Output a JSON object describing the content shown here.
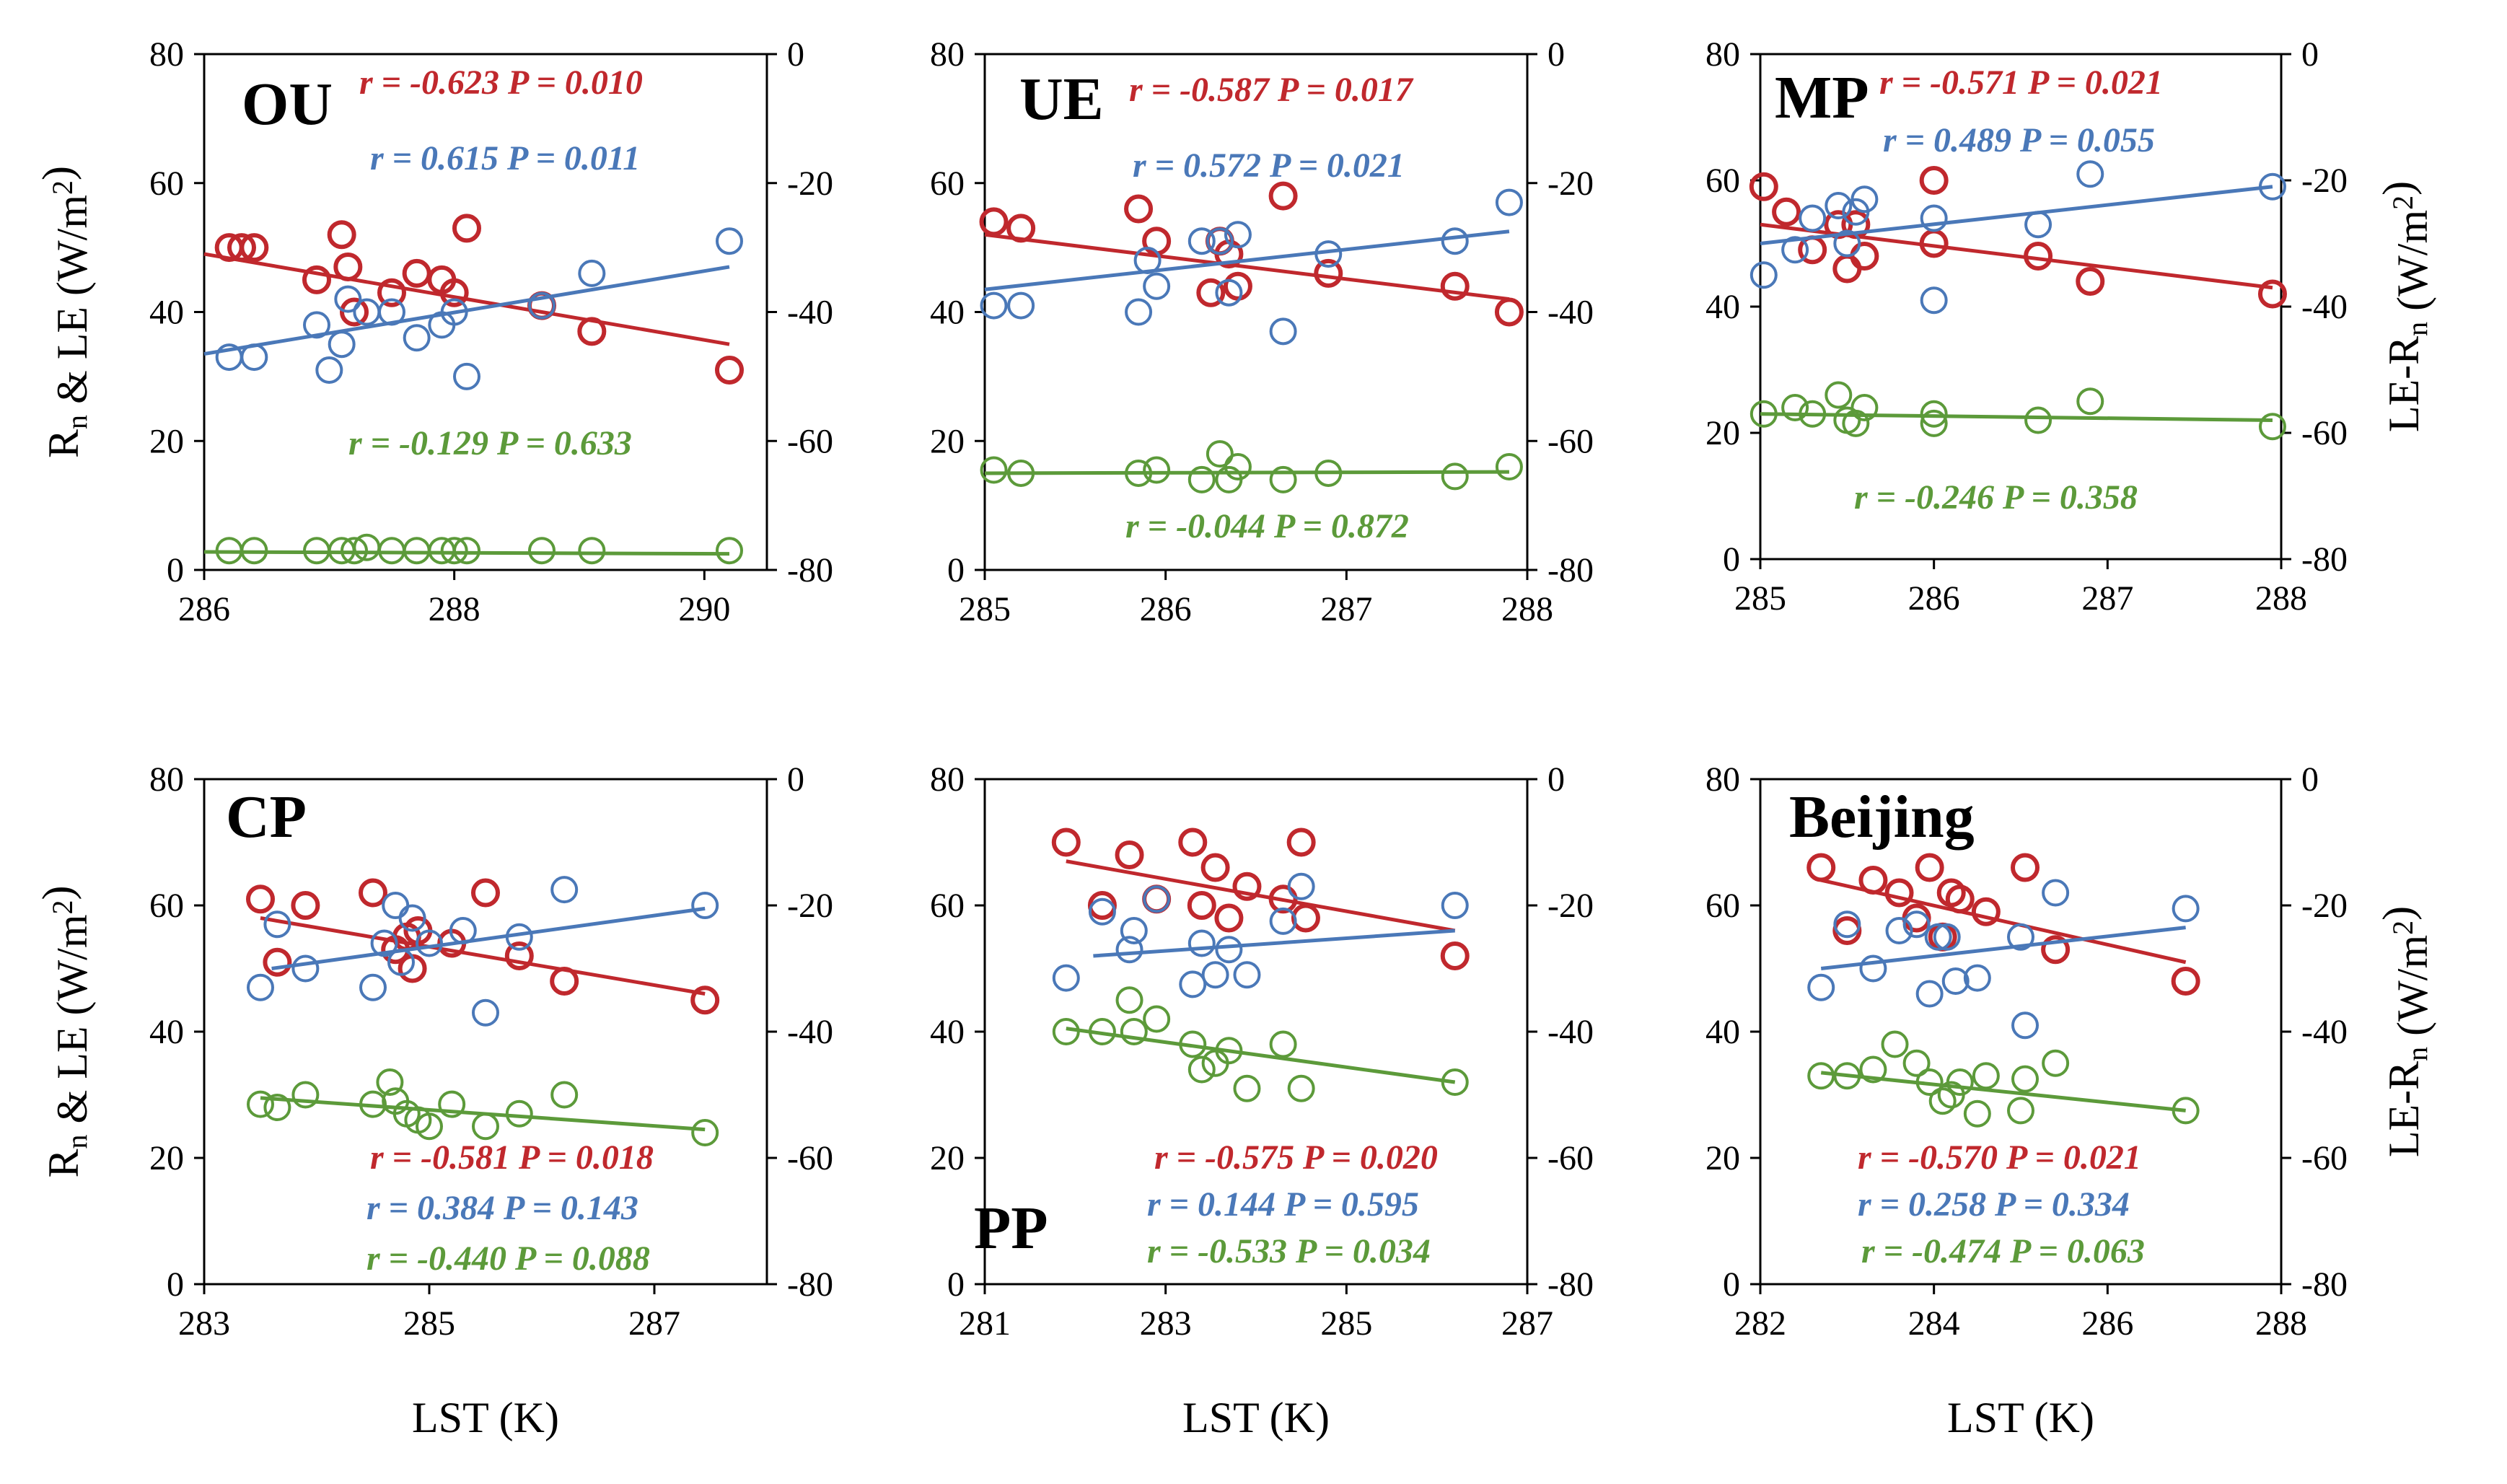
{
  "chart_data": [
    {
      "type": "scatter",
      "title": "OU",
      "xlabel": "",
      "ylabel": "Rn & LE (W/m²)",
      "y2label": "",
      "xlim": [
        286,
        290.5
      ],
      "xticks": [
        "286",
        "288",
        "290"
      ],
      "ylim": [
        0,
        80
      ],
      "yticks": [
        "0",
        "20",
        "40",
        "60",
        "80"
      ],
      "y2lim": [
        -80,
        0
      ],
      "y2ticks": [
        "-80",
        "-60",
        "-40",
        "-20",
        "0"
      ],
      "series": [
        {
          "name": "LE-Rn",
          "axis": "right",
          "color": "#c0282d",
          "x": [
            286.2,
            286.3,
            286.4,
            286.9,
            287.1,
            287.15,
            287.2,
            287.5,
            287.7,
            287.9,
            288.0,
            288.1,
            288.7,
            289.1,
            290.2
          ],
          "y": [
            -30,
            -30,
            -30,
            -35,
            -28,
            -33,
            -40,
            -37,
            -34,
            -35,
            -37,
            -27,
            -39,
            -43,
            -49
          ],
          "fit": [
            [
              286.0,
              -31
            ],
            [
              290.2,
              -45
            ]
          ],
          "annotation": "r = -0.623 P = 0.010"
        },
        {
          "name": "Rn",
          "axis": "left",
          "color": "#4a78b8",
          "x": [
            286.2,
            286.4,
            286.9,
            287.0,
            287.1,
            287.15,
            287.3,
            287.5,
            287.7,
            287.9,
            288.0,
            288.1,
            288.7,
            289.1,
            290.2
          ],
          "y": [
            33,
            33,
            38,
            31,
            35,
            42,
            40,
            40,
            36,
            38,
            40,
            30,
            41,
            46,
            51
          ],
          "fit": [
            [
              286.0,
              33.5
            ],
            [
              290.2,
              47
            ]
          ],
          "annotation": "r = 0.615 P = 0.011"
        },
        {
          "name": "LE",
          "axis": "left",
          "color": "#5c9a3a",
          "x": [
            286.2,
            286.4,
            286.9,
            287.1,
            287.2,
            287.3,
            287.5,
            287.7,
            287.9,
            288.0,
            288.1,
            288.7,
            289.1,
            290.2
          ],
          "y": [
            3,
            3,
            3,
            3,
            3,
            3.5,
            3,
            3,
            3,
            3,
            3,
            3,
            3,
            3
          ],
          "fit": [
            [
              286.0,
              2.8
            ],
            [
              290.2,
              2.5
            ]
          ],
          "annotation": "r = -0.129 P = 0.633"
        }
      ]
    },
    {
      "type": "scatter",
      "title": "UE",
      "xlabel": "",
      "ylabel": "",
      "y2label": "",
      "xlim": [
        285,
        288
      ],
      "xticks": [
        "285",
        "286",
        "287",
        "288"
      ],
      "ylim": [
        0,
        80
      ],
      "yticks": [
        "0",
        "20",
        "40",
        "60",
        "80"
      ],
      "y2lim": [
        -80,
        0
      ],
      "y2ticks": [
        "-80",
        "-60",
        "-40",
        "-20",
        "0"
      ],
      "series": [
        {
          "name": "LE-Rn",
          "axis": "right",
          "color": "#c0282d",
          "x": [
            285.05,
            285.2,
            285.85,
            285.95,
            286.25,
            286.3,
            286.35,
            286.4,
            286.65,
            286.9,
            287.6,
            287.9
          ],
          "y": [
            -26,
            -27,
            -24,
            -29,
            -37,
            -29,
            -31,
            -36,
            -22,
            -34,
            -36,
            -40
          ],
          "fit": [
            [
              285.0,
              -28
            ],
            [
              287.9,
              -38
            ]
          ],
          "annotation": "r = -0.587 P = 0.017"
        },
        {
          "name": "Rn",
          "axis": "left",
          "color": "#4a78b8",
          "x": [
            285.05,
            285.2,
            285.85,
            285.9,
            285.95,
            286.2,
            286.3,
            286.35,
            286.4,
            286.65,
            286.9,
            287.6,
            287.9
          ],
          "y": [
            41,
            41,
            40,
            48,
            44,
            51,
            51,
            43,
            52,
            37,
            49,
            51,
            57
          ],
          "fit": [
            [
              285.0,
              43.5
            ],
            [
              287.9,
              52.5
            ]
          ],
          "annotation": "r = 0.572 P = 0.021"
        },
        {
          "name": "LE",
          "axis": "left",
          "color": "#5c9a3a",
          "x": [
            285.05,
            285.2,
            285.85,
            285.95,
            286.2,
            286.3,
            286.35,
            286.4,
            286.65,
            286.9,
            287.6,
            287.9
          ],
          "y": [
            15.5,
            15,
            15,
            15.5,
            14,
            18,
            14,
            16,
            14,
            15,
            14.5,
            16
          ],
          "fit": [
            [
              285.0,
              15
            ],
            [
              287.9,
              15.2
            ]
          ],
          "annotation": "r = -0.044 P = 0.872"
        }
      ]
    },
    {
      "type": "scatter",
      "title": "MP",
      "xlabel": "",
      "ylabel": "",
      "y2label": "LE-Rn (W/m²)",
      "xlim": [
        285,
        288
      ],
      "xticks": [
        "285",
        "286",
        "287",
        "288"
      ],
      "ylim": [
        0,
        80
      ],
      "yticks": [
        "0",
        "20",
        "40",
        "60",
        "80"
      ],
      "y2lim": [
        -80,
        0
      ],
      "y2ticks": [
        "-80",
        "-60",
        "-40",
        "-20",
        "0"
      ],
      "series": [
        {
          "name": "LE-Rn",
          "axis": "right",
          "color": "#c0282d",
          "x": [
            285.02,
            285.15,
            285.3,
            285.45,
            285.5,
            285.55,
            285.6,
            286.0,
            286.0,
            286.6,
            286.9,
            287.95
          ],
          "y": [
            -21,
            -25,
            -31,
            -27,
            -34,
            -27,
            -32,
            -20,
            -30,
            -32,
            -36,
            -38
          ],
          "fit": [
            [
              285.0,
              -27
            ],
            [
              287.95,
              -37
            ]
          ],
          "annotation": "r = -0.571 P = 0.021"
        },
        {
          "name": "Rn",
          "axis": "left",
          "color": "#4a78b8",
          "x": [
            285.02,
            285.2,
            285.3,
            285.45,
            285.5,
            285.55,
            285.6,
            286.0,
            286.0,
            286.6,
            286.9,
            287.95
          ],
          "y": [
            45,
            49,
            54,
            56,
            50,
            55,
            57,
            54,
            41,
            53,
            61,
            59
          ],
          "fit": [
            [
              285.0,
              50
            ],
            [
              287.95,
              59
            ]
          ],
          "annotation": "r = 0.489 P = 0.055"
        },
        {
          "name": "LE",
          "axis": "left",
          "color": "#5c9a3a",
          "x": [
            285.02,
            285.2,
            285.3,
            285.45,
            285.5,
            285.55,
            285.6,
            286.0,
            286.0,
            286.6,
            286.9,
            287.95
          ],
          "y": [
            23,
            24,
            23,
            26,
            22,
            21.5,
            24,
            21.5,
            23,
            22,
            25,
            21
          ],
          "fit": [
            [
              285.0,
              23
            ],
            [
              287.95,
              22
            ]
          ],
          "annotation": "r = -0.246 P = 0.358"
        }
      ]
    },
    {
      "type": "scatter",
      "title": "CP",
      "xlabel": "LST (K)",
      "ylabel": "Rn & LE (W/m²)",
      "y2label": "",
      "xlim": [
        283,
        288
      ],
      "xticks": [
        "283",
        "285",
        "287"
      ],
      "ylim": [
        0,
        80
      ],
      "yticks": [
        "0",
        "20",
        "40",
        "60",
        "80"
      ],
      "y2lim": [
        -80,
        0
      ],
      "y2ticks": [
        "-80",
        "-60",
        "-40",
        "-20",
        "0"
      ],
      "series": [
        {
          "name": "LE-Rn",
          "axis": "right",
          "color": "#c0282d",
          "x": [
            283.5,
            283.65,
            283.9,
            284.5,
            284.7,
            284.8,
            284.85,
            284.9,
            285.2,
            285.5,
            285.8,
            286.2,
            287.45
          ],
          "y": [
            -19,
            -29,
            -20,
            -18,
            -27,
            -25,
            -30,
            -24,
            -26,
            -18,
            -28,
            -32,
            -35
          ],
          "fit": [
            [
              283.5,
              -22
            ],
            [
              287.45,
              -34
            ]
          ],
          "annotation": "r = -0.581 P = 0.018"
        },
        {
          "name": "Rn",
          "axis": "left",
          "color": "#4a78b8",
          "x": [
            283.5,
            283.65,
            283.9,
            284.5,
            284.6,
            284.7,
            284.75,
            284.85,
            285.0,
            285.3,
            285.5,
            285.8,
            286.2,
            287.45
          ],
          "y": [
            47,
            57,
            50,
            47,
            54,
            60,
            51,
            58,
            54,
            56,
            43,
            55,
            62.5,
            60
          ],
          "fit": [
            [
              283.6,
              50
            ],
            [
              287.45,
              59.5
            ]
          ],
          "annotation": "r = 0.384 P = 0.143"
        },
        {
          "name": "LE",
          "axis": "left",
          "color": "#5c9a3a",
          "x": [
            283.5,
            283.65,
            283.9,
            284.5,
            284.65,
            284.7,
            284.8,
            284.9,
            285.0,
            285.2,
            285.5,
            285.8,
            286.2,
            287.45
          ],
          "y": [
            28.5,
            28,
            30,
            28.5,
            32,
            29,
            27,
            26,
            25,
            28.5,
            25,
            27,
            30,
            24
          ],
          "fit": [
            [
              283.5,
              29.5
            ],
            [
              287.45,
              24.5
            ]
          ],
          "annotation": "r = -0.440 P = 0.088"
        }
      ]
    },
    {
      "type": "scatter",
      "title": "PP",
      "xlabel": "LST (K)",
      "ylabel": "",
      "y2label": "",
      "xlim": [
        281,
        287
      ],
      "xticks": [
        "281",
        "283",
        "285",
        "287"
      ],
      "ylim": [
        0,
        80
      ],
      "yticks": [
        "0",
        "20",
        "40",
        "60",
        "80"
      ],
      "y2lim": [
        -80,
        0
      ],
      "y2ticks": [
        "-80",
        "-60",
        "-40",
        "-20",
        "0"
      ],
      "series": [
        {
          "name": "LE-Rn",
          "axis": "right",
          "color": "#c0282d",
          "x": [
            281.9,
            282.3,
            282.6,
            282.9,
            283.3,
            283.4,
            283.55,
            283.7,
            283.9,
            284.3,
            284.5,
            284.55,
            286.2
          ],
          "y": [
            -10,
            -20,
            -12,
            -19,
            -10,
            -20,
            -14,
            -22,
            -17,
            -19,
            -10,
            -22,
            -28
          ],
          "fit": [
            [
              281.9,
              -13
            ],
            [
              286.2,
              -24
            ]
          ],
          "annotation": "r = -0.575 P = 0.020"
        },
        {
          "name": "Rn",
          "axis": "left",
          "color": "#4a78b8",
          "x": [
            281.9,
            282.3,
            282.6,
            282.65,
            282.9,
            283.3,
            283.4,
            283.55,
            283.7,
            283.9,
            284.3,
            284.5,
            286.2
          ],
          "y": [
            48.5,
            59,
            53,
            56,
            61,
            47.5,
            54,
            49,
            53,
            49,
            57.5,
            63,
            60
          ],
          "fit": [
            [
              282.2,
              52
            ],
            [
              286.2,
              56
            ]
          ],
          "annotation": "r = 0.144 P = 0.595"
        },
        {
          "name": "LE",
          "axis": "left",
          "color": "#5c9a3a",
          "x": [
            281.9,
            282.3,
            282.6,
            282.65,
            282.9,
            283.3,
            283.4,
            283.55,
            283.7,
            283.9,
            284.3,
            284.5,
            286.2
          ],
          "y": [
            40,
            40,
            45,
            40,
            42,
            38,
            34,
            35,
            37,
            31,
            38,
            31,
            32
          ],
          "fit": [
            [
              281.9,
              40.5
            ],
            [
              286.2,
              32
            ]
          ],
          "annotation": "r = -0.533 P = 0.034"
        }
      ]
    },
    {
      "type": "scatter",
      "title": "Beijing",
      "xlabel": "LST (K)",
      "ylabel": "",
      "y2label": "LE-Rn (W/m²)",
      "xlim": [
        282,
        288
      ],
      "xticks": [
        "282",
        "284",
        "286",
        "288"
      ],
      "ylim": [
        0,
        80
      ],
      "yticks": [
        "0",
        "20",
        "40",
        "60",
        "80"
      ],
      "y2lim": [
        -80,
        0
      ],
      "y2ticks": [
        "-80",
        "-60",
        "-40",
        "-20",
        "0"
      ],
      "series": [
        {
          "name": "LE-Rn",
          "axis": "right",
          "color": "#c0282d",
          "x": [
            282.7,
            283.0,
            283.3,
            283.6,
            283.8,
            283.95,
            284.1,
            284.2,
            284.3,
            284.6,
            285.05,
            285.4,
            286.9
          ],
          "y": [
            -14,
            -24,
            -16,
            -18,
            -22,
            -14,
            -25,
            -18,
            -19,
            -21,
            -14,
            -27,
            -32
          ],
          "fit": [
            [
              282.7,
              -16
            ],
            [
              286.9,
              -29
            ]
          ],
          "annotation": "r = -0.570 P = 0.021"
        },
        {
          "name": "Rn",
          "axis": "left",
          "color": "#4a78b8",
          "x": [
            282.7,
            283.0,
            283.3,
            283.6,
            283.8,
            283.95,
            284.05,
            284.15,
            284.25,
            284.5,
            285.0,
            285.05,
            285.4,
            286.9
          ],
          "y": [
            47,
            57,
            50,
            56,
            57,
            46,
            55,
            55,
            48,
            48.5,
            55,
            41,
            62,
            59.5
          ],
          "fit": [
            [
              282.7,
              50
            ],
            [
              286.9,
              56.5
            ]
          ],
          "annotation": "r = 0.258 P = 0.334"
        },
        {
          "name": "LE",
          "axis": "left",
          "color": "#5c9a3a",
          "x": [
            282.7,
            283.0,
            283.3,
            283.55,
            283.8,
            283.95,
            284.1,
            284.2,
            284.3,
            284.5,
            284.6,
            285.0,
            285.05,
            285.4,
            286.9
          ],
          "y": [
            33,
            33,
            34,
            38,
            35,
            32,
            29,
            30,
            32,
            27,
            33,
            27.5,
            32.5,
            35,
            27.5
          ],
          "fit": [
            [
              282.7,
              33.5
            ],
            [
              286.9,
              27.5
            ]
          ],
          "annotation": "r = -0.474 P = 0.063"
        }
      ]
    }
  ]
}
